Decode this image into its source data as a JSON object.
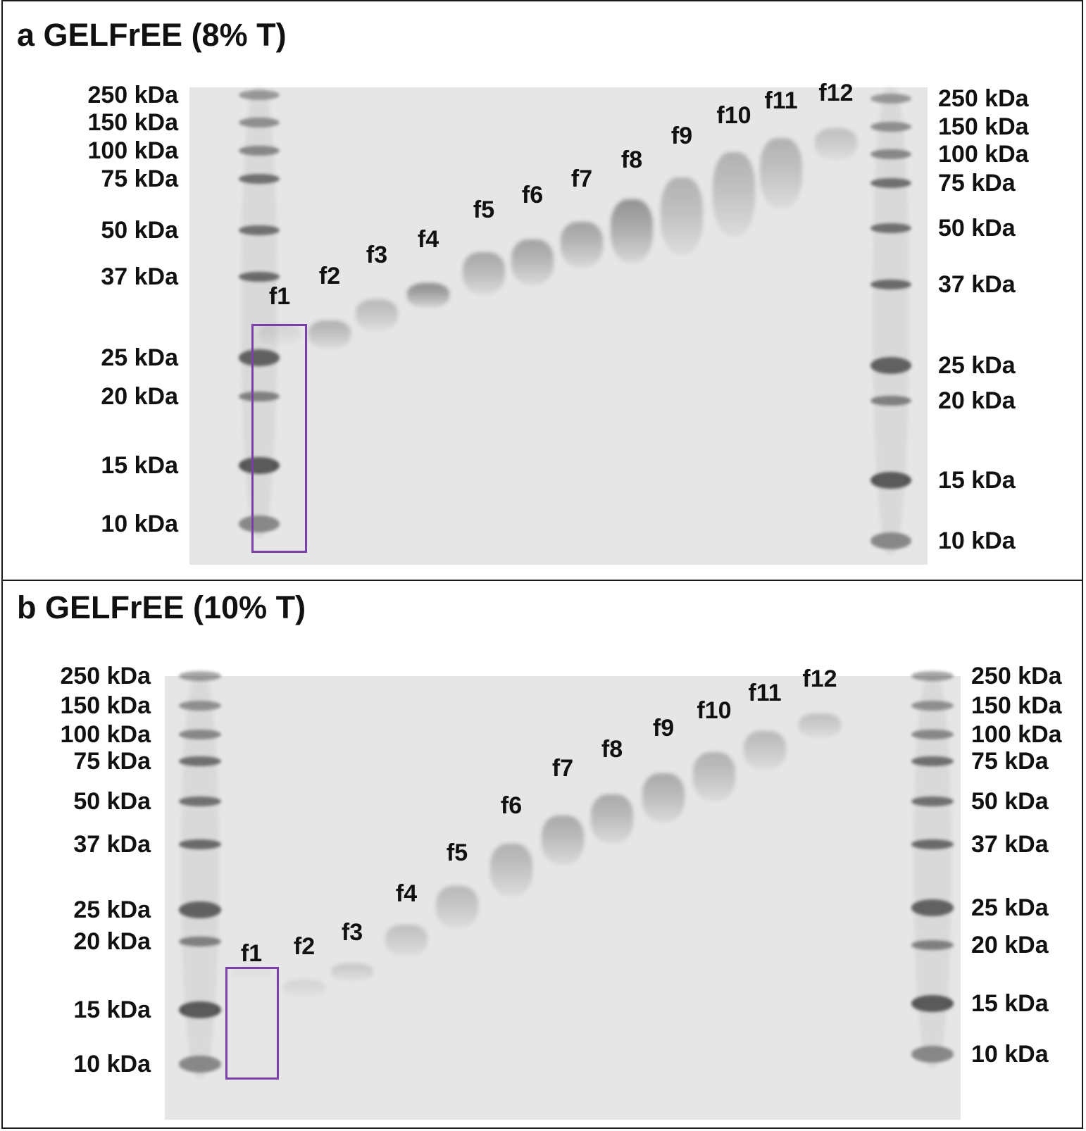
{
  "panel_a": {
    "title": "a GELFrEE (8% T)",
    "left_markers": [
      "250 kDa",
      "150 kDa",
      "100 kDa",
      "75 kDa",
      "50 kDa",
      "37 kDa",
      "25 kDa",
      "20 kDa",
      "15 kDa",
      "10 kDa"
    ],
    "right_markers": [
      "250 kDa",
      "150 kDa",
      "100 kDa",
      "75 kDa",
      "50 kDa",
      "37 kDa",
      "25 kDa",
      "20 kDa",
      "15 kDa",
      "10 kDa"
    ],
    "fractions": [
      "f1",
      "f2",
      "f3",
      "f4",
      "f5",
      "f6",
      "f7",
      "f8",
      "f9",
      "f10",
      "f11",
      "f12"
    ],
    "highlighted_fraction": "f1"
  },
  "panel_b": {
    "title": "b GELFrEE (10% T)",
    "left_markers": [
      "250 kDa",
      "150 kDa",
      "100 kDa",
      "75 kDa",
      "50 kDa",
      "37 kDa",
      "25 kDa",
      "20 kDa",
      "15 kDa",
      "10 kDa"
    ],
    "right_markers": [
      "250 kDa",
      "150 kDa",
      "100 kDa",
      "75 kDa",
      "50 kDa",
      "37 kDa",
      "25 kDa",
      "20 kDa",
      "15 kDa",
      "10 kDa"
    ],
    "fractions": [
      "f1",
      "f2",
      "f3",
      "f4",
      "f5",
      "f6",
      "f7",
      "f8",
      "f9",
      "f10",
      "f11",
      "f12"
    ],
    "highlighted_fraction": "f1"
  },
  "colors": {
    "highlight_box": "#7a3fa8",
    "gel_background": "#e6e6e6",
    "band": "#555555"
  }
}
